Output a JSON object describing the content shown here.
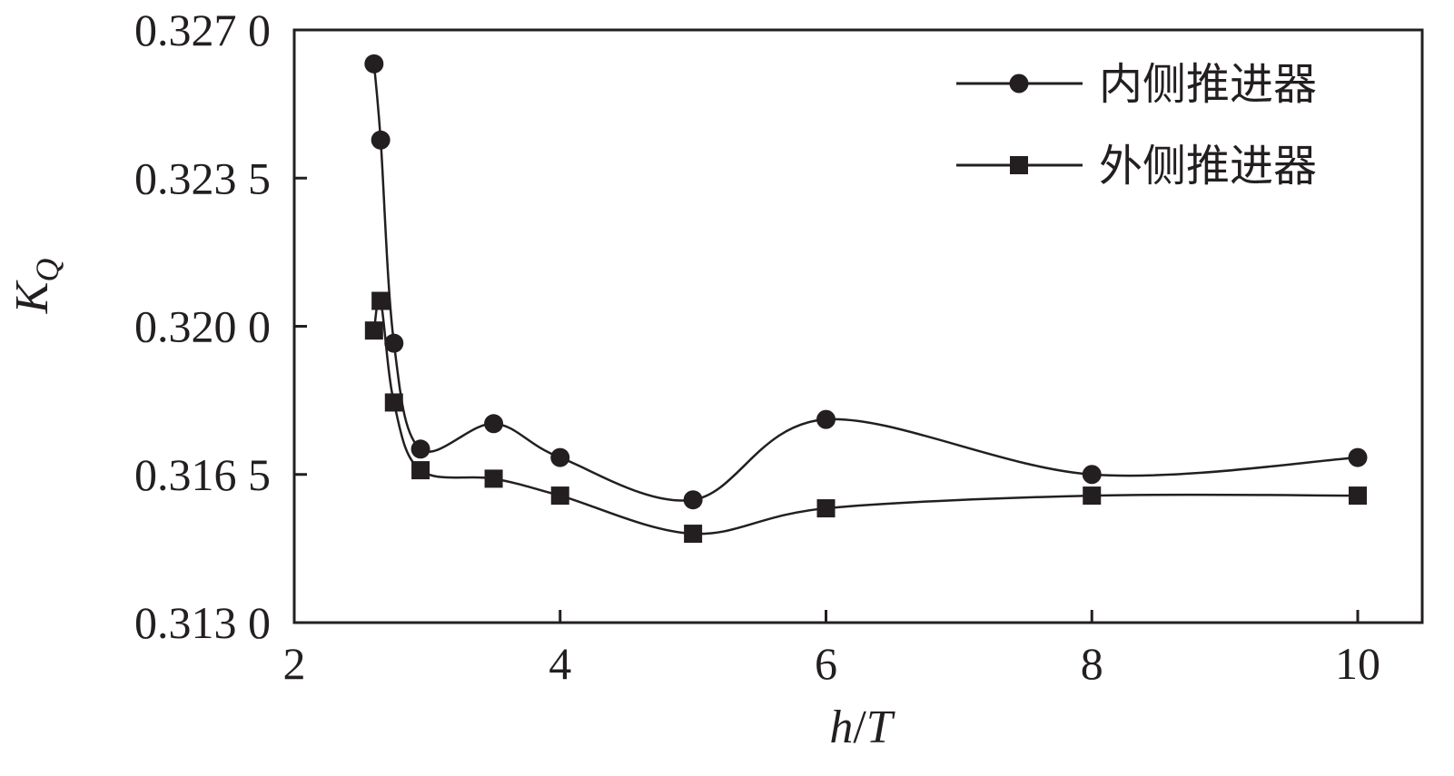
{
  "chart_data": {
    "type": "line",
    "title": "",
    "xlabel": {
      "main": "h",
      "slash": "/",
      "sub": "T"
    },
    "ylabel": {
      "main": "K",
      "sub": "Q"
    },
    "xlim": [
      2,
      10.25
    ],
    "ylim": [
      0.313,
      0.327
    ],
    "xticks": [
      2,
      4,
      6,
      8,
      10
    ],
    "xtick_labels": [
      "2",
      "4",
      "6",
      "8",
      "10"
    ],
    "yticks": [
      0.313,
      0.3165,
      0.32,
      0.3235,
      0.327
    ],
    "ytick_labels": [
      "0.313 0",
      "0.316 5",
      "0.320 0",
      "0.323 5",
      "0.327 0"
    ],
    "grid": false,
    "legend_position": "top-right",
    "series": [
      {
        "name": "内侧推进器",
        "marker": "circle",
        "color": "#231f20",
        "x": [
          2.6,
          2.65,
          2.75,
          2.95,
          3.5,
          4.0,
          5.0,
          6.0,
          8.0,
          10.0
        ],
        "y": [
          0.3262,
          0.3244,
          0.3196,
          0.3171,
          0.3177,
          0.3169,
          0.3159,
          0.3178,
          0.3165,
          0.3169
        ]
      },
      {
        "name": "外侧推进器",
        "marker": "square",
        "color": "#231f20",
        "x": [
          2.6,
          2.65,
          2.75,
          2.95,
          3.5,
          4.0,
          5.0,
          6.0,
          8.0,
          10.0
        ],
        "y": [
          0.3199,
          0.3206,
          0.3182,
          0.3166,
          0.3164,
          0.316,
          0.3151,
          0.3157,
          0.316,
          0.316
        ]
      }
    ]
  }
}
